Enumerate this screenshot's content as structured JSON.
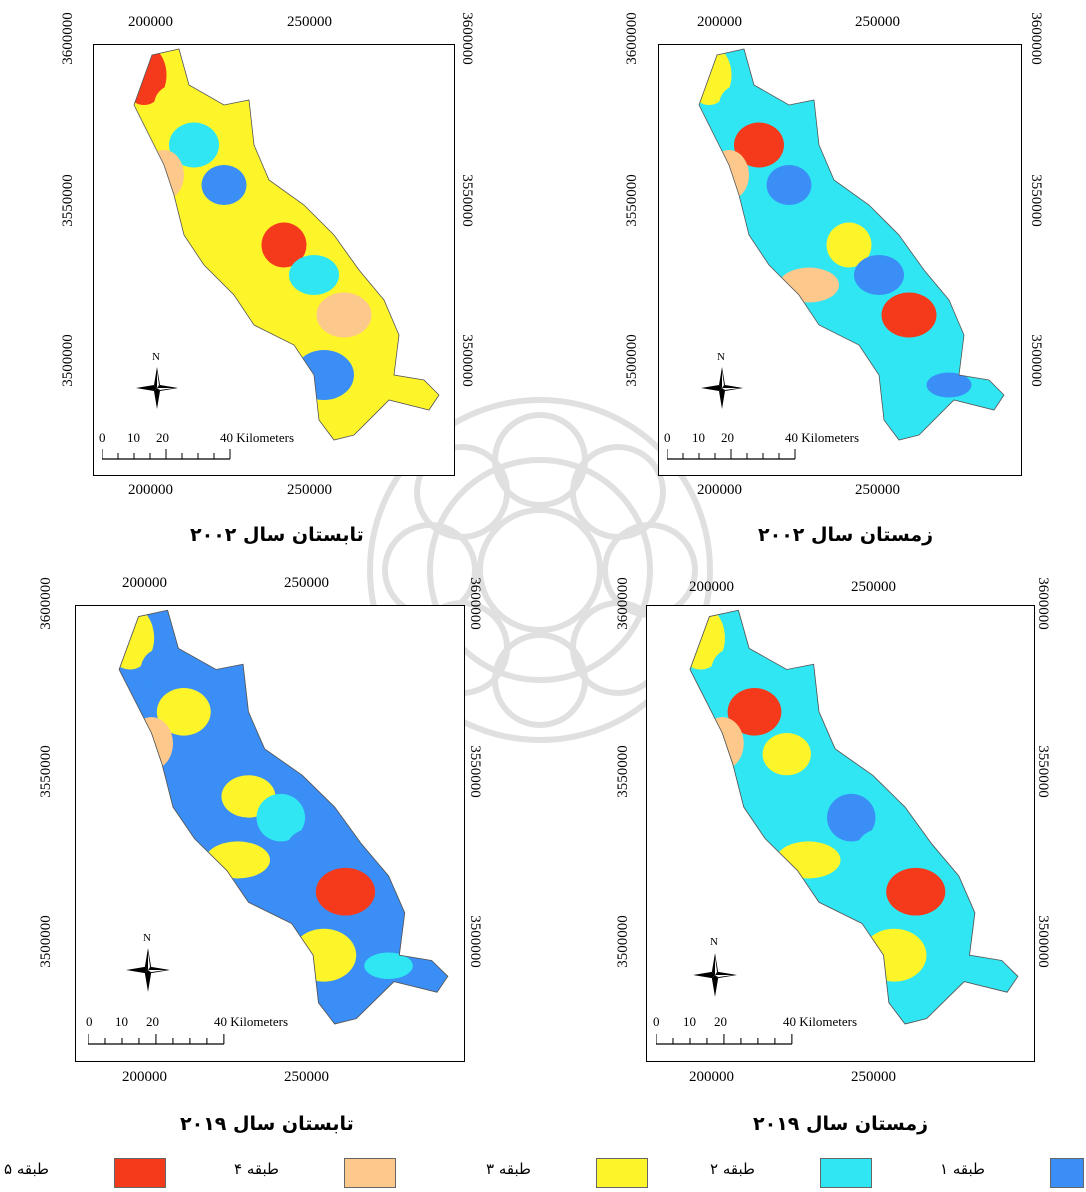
{
  "colors": {
    "class1": "#3a8ef6",
    "class2": "#30e6f2",
    "class3": "#fdf52a",
    "class4": "#fcc88c",
    "class5": "#f53a1c"
  },
  "panels": [
    {
      "id": "summer-2002",
      "caption": "تابستان سال ۲۰۰۲",
      "x_ticks": [
        "200000",
        "250000"
      ],
      "y_ticks": [
        "3600000",
        "3550000",
        "3500000"
      ],
      "north": "N",
      "scale_numbers": [
        "0",
        "10",
        "20",
        "40 Kilometers"
      ],
      "palette": [
        "class5",
        "class3",
        "class2",
        "class4",
        "class1",
        "class3",
        "class5",
        "class2",
        "class3",
        "class4",
        "class1",
        "class3"
      ]
    },
    {
      "id": "winter-2002",
      "caption": "زمستان سال ۲۰۰۲",
      "x_ticks": [
        "200000",
        "250000"
      ],
      "y_ticks": [
        "3600000",
        "3550000",
        "3500000"
      ],
      "north": "N",
      "scale_numbers": [
        "0",
        "10",
        "20",
        "40 Kilometers"
      ],
      "palette": [
        "class3",
        "class2",
        "class5",
        "class4",
        "class1",
        "class2",
        "class3",
        "class1",
        "class4",
        "class5",
        "class2",
        "class1"
      ]
    },
    {
      "id": "summer-2019",
      "caption": "تابستان سال ۲۰۱۹",
      "x_ticks": [
        "200000",
        "250000"
      ],
      "y_ticks": [
        "3600000",
        "3550000",
        "3500000"
      ],
      "north": "N",
      "scale_numbers": [
        "0",
        "10",
        "20",
        "40 Kilometers"
      ],
      "palette": [
        "class3",
        "class1",
        "class3",
        "class4",
        "class1",
        "class3",
        "class2",
        "class1",
        "class3",
        "class5",
        "class3",
        "class2"
      ]
    },
    {
      "id": "winter-2019",
      "caption": "زمستان سال ۲۰۱۹",
      "x_ticks": [
        "200000",
        "250000"
      ],
      "y_ticks": [
        "3600000",
        "3550000",
        "3500000"
      ],
      "north": "N",
      "scale_numbers": [
        "0",
        "10",
        "20",
        "40 Kilometers"
      ],
      "palette": [
        "class3",
        "class2",
        "class5",
        "class4",
        "class3",
        "class2",
        "class1",
        "class2",
        "class3",
        "class5",
        "class3",
        "class2"
      ]
    }
  ],
  "legend": [
    {
      "label": "طبقه ۵",
      "color_key": "class5"
    },
    {
      "label": "طبقه ۴",
      "color_key": "class4"
    },
    {
      "label": "طبقه ۳",
      "color_key": "class3"
    },
    {
      "label": "طبقه ۲",
      "color_key": "class2"
    },
    {
      "label": "طبقه ۱",
      "color_key": "class1"
    }
  ]
}
